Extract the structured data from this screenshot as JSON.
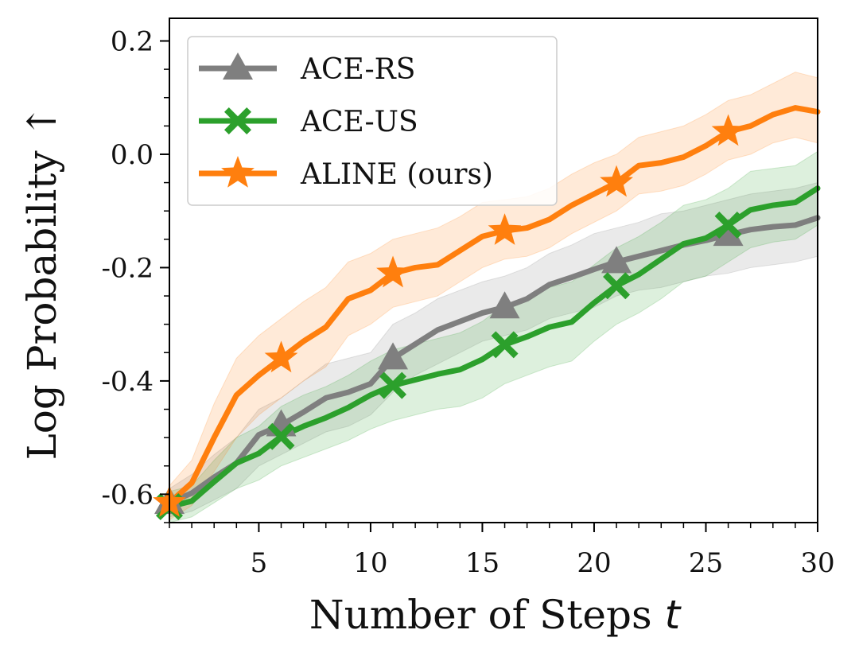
{
  "chart_data": {
    "type": "line",
    "title": "",
    "xlabel": "Number of Steps",
    "xlabel_var": "t",
    "ylabel": "Log Probability ↑",
    "xlim": [
      1,
      30
    ],
    "ylim": [
      -0.65,
      0.24
    ],
    "xticks": [
      5,
      10,
      15,
      20,
      25,
      30
    ],
    "xtick_labels": [
      "5",
      "10",
      "15",
      "20",
      "25",
      "30"
    ],
    "yticks": [
      -0.6,
      -0.4,
      -0.2,
      0.0,
      0.2
    ],
    "ytick_labels": [
      "-0.6",
      "-0.4",
      "-0.2",
      "0.0",
      "0.2"
    ],
    "grid": false,
    "legend_position": "top-left",
    "x": [
      1,
      2,
      3,
      4,
      5,
      6,
      7,
      8,
      9,
      10,
      11,
      12,
      13,
      14,
      15,
      16,
      17,
      18,
      19,
      20,
      21,
      22,
      23,
      24,
      25,
      26,
      27,
      28,
      29,
      30
    ],
    "series": [
      {
        "name": "ACE-RS",
        "color": "#7f7f7f",
        "marker": "triangle",
        "marker_every": 5,
        "values": [
          -0.615,
          -0.598,
          -0.57,
          -0.545,
          -0.495,
          -0.478,
          -0.455,
          -0.43,
          -0.42,
          -0.405,
          -0.36,
          -0.335,
          -0.31,
          -0.295,
          -0.28,
          -0.27,
          -0.255,
          -0.23,
          -0.217,
          -0.203,
          -0.19,
          -0.18,
          -0.17,
          -0.16,
          -0.152,
          -0.142,
          -0.133,
          -0.128,
          -0.125,
          -0.112
        ],
        "lower": [
          -0.64,
          -0.63,
          -0.61,
          -0.59,
          -0.55,
          -0.53,
          -0.51,
          -0.49,
          -0.48,
          -0.46,
          -0.42,
          -0.39,
          -0.37,
          -0.35,
          -0.33,
          -0.32,
          -0.31,
          -0.29,
          -0.28,
          -0.27,
          -0.25,
          -0.24,
          -0.235,
          -0.225,
          -0.215,
          -0.21,
          -0.2,
          -0.195,
          -0.19,
          -0.18
        ],
        "upper": [
          -0.59,
          -0.565,
          -0.53,
          -0.5,
          -0.45,
          -0.43,
          -0.4,
          -0.37,
          -0.36,
          -0.35,
          -0.3,
          -0.28,
          -0.255,
          -0.24,
          -0.225,
          -0.215,
          -0.2,
          -0.175,
          -0.16,
          -0.14,
          -0.13,
          -0.12,
          -0.105,
          -0.1,
          -0.09,
          -0.08,
          -0.07,
          -0.065,
          -0.06,
          -0.05
        ]
      },
      {
        "name": "ACE-US",
        "color": "#2ca02c",
        "marker": "x",
        "marker_every": 5,
        "values": [
          -0.622,
          -0.612,
          -0.578,
          -0.545,
          -0.528,
          -0.498,
          -0.48,
          -0.465,
          -0.447,
          -0.425,
          -0.408,
          -0.398,
          -0.388,
          -0.38,
          -0.362,
          -0.336,
          -0.322,
          -0.305,
          -0.296,
          -0.262,
          -0.232,
          -0.212,
          -0.185,
          -0.158,
          -0.148,
          -0.125,
          -0.098,
          -0.09,
          -0.085,
          -0.06
        ],
        "lower": [
          -0.65,
          -0.64,
          -0.615,
          -0.59,
          -0.575,
          -0.55,
          -0.535,
          -0.52,
          -0.505,
          -0.485,
          -0.47,
          -0.46,
          -0.45,
          -0.445,
          -0.43,
          -0.405,
          -0.39,
          -0.375,
          -0.365,
          -0.33,
          -0.3,
          -0.28,
          -0.255,
          -0.225,
          -0.215,
          -0.19,
          -0.165,
          -0.155,
          -0.15,
          -0.125
        ],
        "upper": [
          -0.595,
          -0.585,
          -0.54,
          -0.5,
          -0.48,
          -0.445,
          -0.425,
          -0.41,
          -0.39,
          -0.365,
          -0.345,
          -0.335,
          -0.325,
          -0.315,
          -0.295,
          -0.265,
          -0.255,
          -0.235,
          -0.225,
          -0.195,
          -0.165,
          -0.145,
          -0.12,
          -0.09,
          -0.08,
          -0.06,
          -0.03,
          -0.025,
          -0.02,
          0.005
        ]
      },
      {
        "name": "ALINE (ours)",
        "color": "#ff7f0e",
        "marker": "star",
        "marker_every": 5,
        "values": [
          -0.615,
          -0.58,
          -0.5,
          -0.425,
          -0.39,
          -0.36,
          -0.33,
          -0.305,
          -0.255,
          -0.24,
          -0.21,
          -0.2,
          -0.195,
          -0.17,
          -0.145,
          -0.135,
          -0.13,
          -0.115,
          -0.09,
          -0.07,
          -0.05,
          -0.02,
          -0.015,
          -0.005,
          0.015,
          0.04,
          0.05,
          0.07,
          0.082,
          0.075
        ],
        "lower": [
          -0.645,
          -0.62,
          -0.56,
          -0.5,
          -0.46,
          -0.43,
          -0.4,
          -0.375,
          -0.32,
          -0.3,
          -0.27,
          -0.26,
          -0.25,
          -0.225,
          -0.2,
          -0.185,
          -0.18,
          -0.165,
          -0.14,
          -0.12,
          -0.1,
          -0.07,
          -0.065,
          -0.055,
          -0.035,
          -0.01,
          0.0,
          0.02,
          0.03,
          0.02
        ],
        "upper": [
          -0.585,
          -0.54,
          -0.44,
          -0.36,
          -0.32,
          -0.29,
          -0.26,
          -0.235,
          -0.19,
          -0.175,
          -0.15,
          -0.14,
          -0.13,
          -0.11,
          -0.085,
          -0.08,
          -0.075,
          -0.06,
          -0.035,
          -0.015,
          0.0,
          0.03,
          0.04,
          0.05,
          0.07,
          0.095,
          0.105,
          0.125,
          0.145,
          0.135
        ]
      }
    ]
  }
}
